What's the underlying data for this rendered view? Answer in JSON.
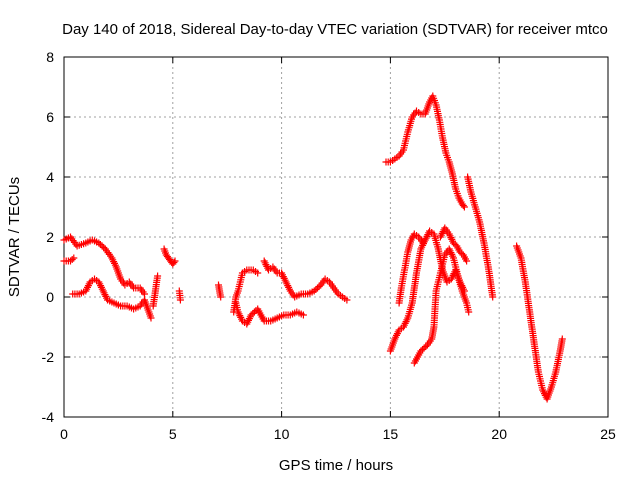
{
  "chart_data": {
    "type": "scatter",
    "title": "Day 140 of 2018, Sidereal Day-to-day VTEC variation (SDTVAR) for receiver mtco",
    "xlabel": "GPS time / hours",
    "ylabel": "SDTVAR / TECUs",
    "xlim": [
      0,
      25
    ],
    "ylim": [
      -4,
      8
    ],
    "xticks": [
      "0",
      "5",
      "10",
      "15",
      "20",
      "25"
    ],
    "yticks": [
      "-4",
      "-2",
      "0",
      "2",
      "4",
      "6",
      "8"
    ],
    "grid": true,
    "marker": "plus",
    "color": "#ff0000",
    "series": [
      {
        "x": [
          0.0,
          0.3,
          0.6,
          1.0,
          1.3,
          1.6,
          1.9,
          2.2,
          2.4,
          2.6,
          2.8,
          3.0,
          3.2,
          3.5,
          3.7
        ],
        "y": [
          1.9,
          2.0,
          1.7,
          1.8,
          1.9,
          1.8,
          1.6,
          1.3,
          1.0,
          0.6,
          0.4,
          0.5,
          0.3,
          0.3,
          0.1
        ]
      },
      {
        "x": [
          0.0,
          0.3,
          0.45
        ],
        "y": [
          1.2,
          1.2,
          1.3
        ]
      },
      {
        "x": [
          0.4,
          0.7,
          1.0,
          1.2,
          1.4,
          1.6,
          1.8,
          2.0,
          2.3,
          2.6,
          2.9,
          3.2,
          3.5,
          3.7,
          3.8,
          3.9,
          4.0
        ],
        "y": [
          0.1,
          0.1,
          0.2,
          0.5,
          0.6,
          0.5,
          0.2,
          -0.1,
          -0.2,
          -0.3,
          -0.3,
          -0.4,
          -0.3,
          -0.1,
          -0.3,
          -0.5,
          -0.7
        ]
      },
      {
        "x": [
          4.1,
          4.2,
          4.3
        ],
        "y": [
          -0.3,
          0.2,
          0.7
        ]
      },
      {
        "x": [
          4.6,
          4.7,
          4.8,
          4.9,
          5.0,
          5.1
        ],
        "y": [
          1.6,
          1.4,
          1.3,
          1.2,
          1.1,
          1.2
        ]
      },
      {
        "x": [
          5.3,
          5.35
        ],
        "y": [
          0.2,
          -0.1
        ]
      },
      {
        "x": [
          7.1,
          7.15,
          7.2
        ],
        "y": [
          0.4,
          0.2,
          0.0
        ]
      },
      {
        "x": [
          7.8,
          7.9,
          8.0,
          8.1,
          8.2,
          8.4,
          8.6,
          8.7,
          8.9
        ],
        "y": [
          -0.5,
          0.0,
          0.2,
          0.5,
          0.8,
          0.9,
          0.9,
          0.9,
          0.8
        ]
      },
      {
        "x": [
          7.9,
          8.0,
          8.2,
          8.4,
          8.6,
          8.9,
          9.2,
          9.5,
          9.8,
          10.1,
          10.4,
          10.7,
          11.0
        ],
        "y": [
          -0.2,
          -0.5,
          -0.8,
          -0.9,
          -0.6,
          -0.4,
          -0.8,
          -0.8,
          -0.7,
          -0.6,
          -0.6,
          -0.5,
          -0.6
        ]
      },
      {
        "x": [
          9.2,
          9.4,
          9.6,
          9.8,
          10.0,
          10.2,
          10.4,
          10.6,
          10.9,
          11.2,
          11.5,
          11.8,
          12.0,
          12.2,
          12.4,
          12.6,
          12.8,
          13.0
        ],
        "y": [
          1.2,
          0.9,
          1.0,
          0.8,
          0.8,
          0.5,
          0.2,
          0.0,
          0.1,
          0.1,
          0.2,
          0.4,
          0.6,
          0.5,
          0.3,
          0.1,
          0.0,
          -0.1
        ]
      },
      {
        "x": [
          14.8,
          15.0,
          15.2,
          15.4,
          15.6,
          15.8,
          16.0,
          16.2,
          16.4,
          16.6,
          16.8,
          16.95,
          17.1,
          17.25,
          17.4,
          17.55,
          17.7,
          17.85,
          18.0,
          18.15,
          18.3,
          18.4
        ],
        "y": [
          4.5,
          4.5,
          4.6,
          4.7,
          4.9,
          5.5,
          6.0,
          6.2,
          6.1,
          6.1,
          6.5,
          6.7,
          6.4,
          5.9,
          5.3,
          4.8,
          4.5,
          4.1,
          3.6,
          3.3,
          3.1,
          3.0
        ]
      },
      {
        "x": [
          15.0,
          15.2,
          15.4,
          15.6,
          15.8,
          16.0,
          16.2,
          16.4,
          16.6,
          16.8,
          17.0,
          17.2,
          17.4,
          17.6,
          17.8,
          18.0,
          18.2,
          18.4
        ],
        "y": [
          -1.8,
          -1.4,
          -1.1,
          -1.0,
          -0.7,
          -0.2,
          0.8,
          1.6,
          1.9,
          2.2,
          2.1,
          1.6,
          0.9,
          0.5,
          0.6,
          0.9,
          0.5,
          0.2
        ]
      },
      {
        "x": [
          15.4,
          15.5,
          15.65,
          15.8,
          15.95,
          16.1,
          16.3,
          16.5
        ],
        "y": [
          -0.2,
          0.3,
          0.9,
          1.5,
          1.9,
          2.1,
          2.0,
          1.8
        ]
      },
      {
        "x": [
          16.1,
          16.4,
          16.7,
          16.9,
          17.0,
          17.1,
          17.3,
          17.5,
          17.7,
          17.9,
          18.1,
          18.3,
          18.5,
          18.6
        ],
        "y": [
          -2.2,
          -1.8,
          -1.6,
          -1.4,
          -1.0,
          0.2,
          0.8,
          1.4,
          1.6,
          1.3,
          0.7,
          0.2,
          -0.2,
          -0.5
        ]
      },
      {
        "x": [
          17.3,
          17.5,
          17.7,
          17.9,
          18.05,
          18.2,
          18.35,
          18.5
        ],
        "y": [
          2.0,
          2.3,
          2.1,
          1.8,
          1.7,
          1.5,
          1.4,
          1.2
        ]
      },
      {
        "x": [
          18.55,
          18.7,
          18.9,
          19.1,
          19.3,
          19.5,
          19.7
        ],
        "y": [
          4.0,
          3.5,
          3.0,
          2.5,
          1.8,
          1.0,
          0.0
        ]
      },
      {
        "x": [
          20.8,
          21.0,
          21.2,
          21.4,
          21.6,
          21.8,
          22.0,
          22.2,
          22.4,
          22.6,
          22.8,
          22.9
        ],
        "y": [
          1.7,
          1.3,
          0.5,
          -0.5,
          -1.5,
          -2.5,
          -3.1,
          -3.4,
          -3.0,
          -2.5,
          -1.8,
          -1.4
        ]
      }
    ]
  }
}
